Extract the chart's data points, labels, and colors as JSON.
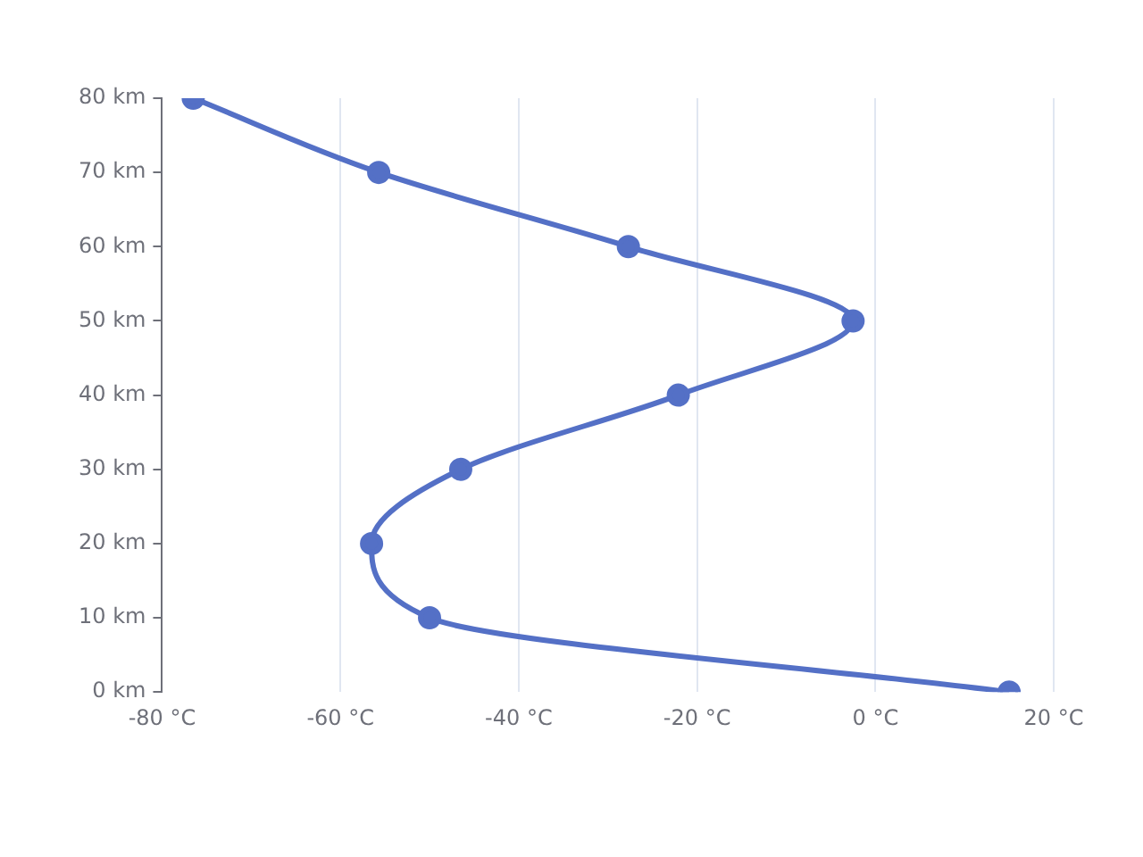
{
  "chart_data": {
    "type": "line",
    "x": [
      15,
      -50,
      -56.5,
      -46.5,
      -22.1,
      -2.5,
      -27.7,
      -55.7,
      -76.5
    ],
    "series": [
      {
        "color": "#5470c6",
        "values": [
          0,
          10,
          20,
          30,
          40,
          50,
          60,
          70,
          80
        ]
      }
    ],
    "xlim": [
      -80,
      20
    ],
    "xticks": [
      {
        "value": -80,
        "label": "-80 °C"
      },
      {
        "value": -60,
        "label": "-60 °C"
      },
      {
        "value": -40,
        "label": "-40 °C"
      },
      {
        "value": -20,
        "label": "-20 °C"
      },
      {
        "value": 0,
        "label": "0 °C"
      },
      {
        "value": 20,
        "label": "20 °C"
      }
    ],
    "ylim": [
      0,
      80
    ],
    "yticks": [
      {
        "value": 0,
        "label": "0 km"
      },
      {
        "value": 10,
        "label": "10 km"
      },
      {
        "value": 20,
        "label": "20 km"
      },
      {
        "value": 30,
        "label": "30 km"
      },
      {
        "value": 40,
        "label": "40 km"
      },
      {
        "value": 50,
        "label": "50 km"
      },
      {
        "value": 60,
        "label": "60 km"
      },
      {
        "value": 70,
        "label": "70 km"
      },
      {
        "value": 80,
        "label": "80 km"
      }
    ],
    "grid": "x",
    "legend": false,
    "marker": "circle",
    "line_style": "solid"
  }
}
